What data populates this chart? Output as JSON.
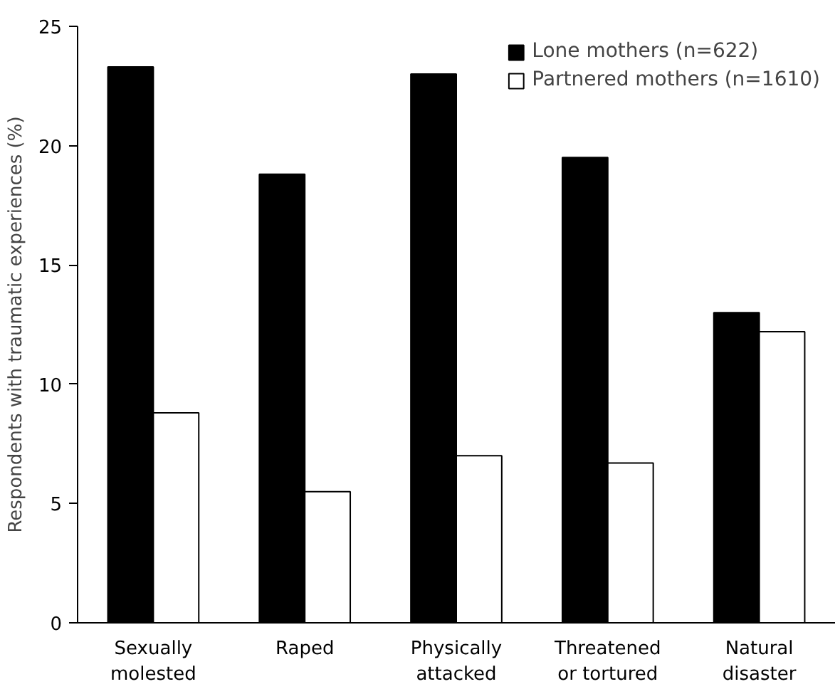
{
  "chart_data": {
    "type": "bar",
    "ylabel": "Respondents with traumatic experiences (%)",
    "categories": [
      "Sexually\nmolested",
      "Raped",
      "Physically\nattacked",
      "Threatened\nor tortured",
      "Natural\ndisaster"
    ],
    "series": [
      {
        "name": "Lone mothers (n=622)",
        "color": "#000000",
        "values": [
          23.3,
          18.8,
          23.0,
          19.5,
          13.0
        ]
      },
      {
        "name": "Partnered mothers (n=1610)",
        "color": "#ffffff",
        "values": [
          8.8,
          5.5,
          7.0,
          6.7,
          12.2
        ]
      }
    ],
    "ylim": [
      0,
      25
    ],
    "yticks": [
      0,
      5,
      10,
      15,
      20,
      25
    ],
    "grid": false,
    "legend": "top right"
  }
}
